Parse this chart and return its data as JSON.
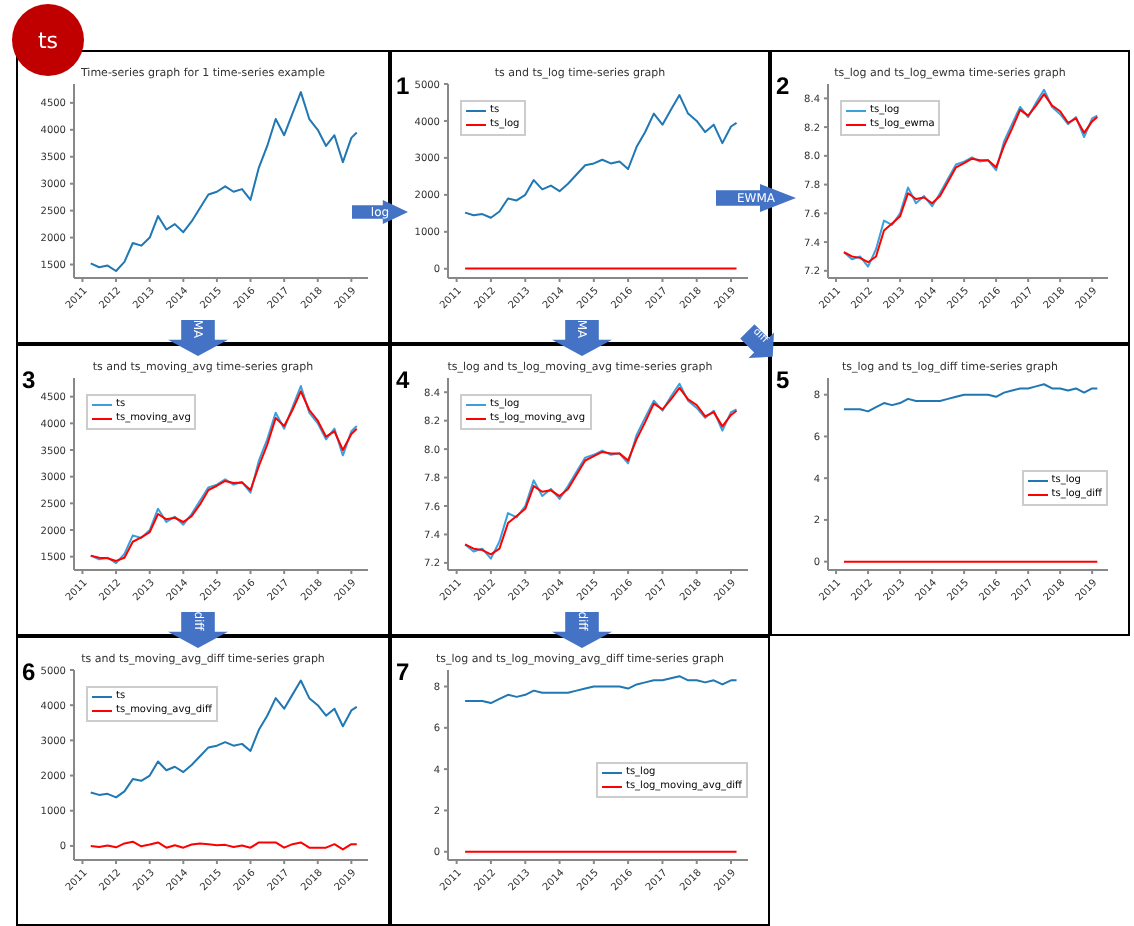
{
  "chart_data": [
    {
      "type": "line",
      "title": "Time-series graph for 1 time-series example",
      "annotations": [
        "ts"
      ],
      "x": [
        "2011-04",
        "2011-07",
        "2011-10",
        "2012-01",
        "2012-04",
        "2012-07",
        "2012-10",
        "2013-01",
        "2013-04",
        "2013-07",
        "2013-10",
        "2014-01",
        "2014-04",
        "2014-07",
        "2014-10",
        "2015-01",
        "2015-04",
        "2015-07",
        "2015-10",
        "2016-01",
        "2016-04",
        "2016-07",
        "2016-10",
        "2017-01",
        "2017-04",
        "2017-07",
        "2017-10",
        "2018-01",
        "2018-04",
        "2018-07",
        "2018-10",
        "2019-01",
        "2019-03"
      ],
      "xlim": [
        "2010-10",
        "2019-07"
      ],
      "xticks": [
        "2011",
        "2012",
        "2013",
        "2014",
        "2015",
        "2016",
        "2017",
        "2018",
        "2019"
      ],
      "ylim": [
        1250,
        4850
      ],
      "yticks": [
        1500,
        2000,
        2500,
        3000,
        3500,
        4000,
        4500
      ],
      "legend": false,
      "marker": "none",
      "series": [
        {
          "color": "#1f77b4",
          "values": [
            1520,
            1450,
            1480,
            1380,
            1550,
            1900,
            1850,
            2000,
            2400,
            2150,
            2250,
            2100,
            2300,
            2550,
            2800,
            2850,
            2950,
            2850,
            2900,
            2700,
            3300,
            3700,
            4200,
            3900,
            4300,
            4700,
            4200,
            4000,
            3700,
            3900,
            3400,
            3850,
            3950
          ]
        }
      ]
    },
    {
      "type": "line",
      "title": "ts and ts_log time-series graph",
      "annotations": [
        "1",
        "log"
      ],
      "x": [
        "2011-04",
        "2011-07",
        "2011-10",
        "2012-01",
        "2012-04",
        "2012-07",
        "2012-10",
        "2013-01",
        "2013-04",
        "2013-07",
        "2013-10",
        "2014-01",
        "2014-04",
        "2014-07",
        "2014-10",
        "2015-01",
        "2015-04",
        "2015-07",
        "2015-10",
        "2016-01",
        "2016-04",
        "2016-07",
        "2016-10",
        "2017-01",
        "2017-04",
        "2017-07",
        "2017-10",
        "2018-01",
        "2018-04",
        "2018-07",
        "2018-10",
        "2019-01",
        "2019-03"
      ],
      "xlim": [
        "2010-10",
        "2019-07"
      ],
      "xticks": [
        "2011",
        "2012",
        "2013",
        "2014",
        "2015",
        "2016",
        "2017",
        "2018",
        "2019"
      ],
      "ylim": [
        -250,
        5000
      ],
      "yticks": [
        0,
        1000,
        2000,
        3000,
        4000,
        5000
      ],
      "legend": "top left",
      "marker": "none",
      "series": [
        {
          "name": "ts",
          "color": "#1f77b4",
          "values": [
            1520,
            1450,
            1480,
            1380,
            1550,
            1900,
            1850,
            2000,
            2400,
            2150,
            2250,
            2100,
            2300,
            2550,
            2800,
            2850,
            2950,
            2850,
            2900,
            2700,
            3300,
            3700,
            4200,
            3900,
            4300,
            4700,
            4200,
            4000,
            3700,
            3900,
            3400,
            3850,
            3950
          ]
        },
        {
          "name": "ts_log",
          "color": "#ff0000",
          "values": [
            8,
            8,
            8,
            8,
            8,
            8,
            8,
            8,
            8,
            8,
            8,
            8,
            8,
            8,
            8,
            8,
            8,
            8,
            8,
            8,
            8,
            8,
            8,
            8,
            8,
            8,
            8,
            8,
            8,
            8,
            8,
            8,
            8
          ]
        }
      ]
    },
    {
      "type": "line",
      "title": "ts_log and ts_log_ewma time-series graph",
      "annotations": [
        "2",
        "EWMA"
      ],
      "x": [
        "2011-04",
        "2011-07",
        "2011-10",
        "2012-01",
        "2012-04",
        "2012-07",
        "2012-10",
        "2013-01",
        "2013-04",
        "2013-07",
        "2013-10",
        "2014-01",
        "2014-04",
        "2014-07",
        "2014-10",
        "2015-01",
        "2015-04",
        "2015-07",
        "2015-10",
        "2016-01",
        "2016-04",
        "2016-07",
        "2016-10",
        "2017-01",
        "2017-04",
        "2017-07",
        "2017-10",
        "2018-01",
        "2018-04",
        "2018-07",
        "2018-10",
        "2019-01",
        "2019-03"
      ],
      "xlim": [
        "2010-10",
        "2019-07"
      ],
      "xticks": [
        "2011",
        "2012",
        "2013",
        "2014",
        "2015",
        "2016",
        "2017",
        "2018",
        "2019"
      ],
      "ylim": [
        7.15,
        8.5
      ],
      "yticks": [
        {
          "value": 7.2,
          "label": "7.2"
        },
        {
          "value": 7.4,
          "label": "7.4"
        },
        {
          "value": 7.6,
          "label": "7.6"
        },
        {
          "value": 7.8,
          "label": "7.8"
        },
        {
          "value": 8,
          "label": "8.0"
        },
        {
          "value": 8.2,
          "label": "8.2"
        },
        {
          "value": 8.4,
          "label": "8.4"
        }
      ],
      "legend": "top left",
      "marker": "none",
      "series": [
        {
          "name": "ts_log",
          "color": "#3aa0dc",
          "values": [
            7.33,
            7.28,
            7.3,
            7.23,
            7.35,
            7.55,
            7.52,
            7.6,
            7.78,
            7.67,
            7.72,
            7.65,
            7.74,
            7.84,
            7.94,
            7.96,
            7.99,
            7.96,
            7.97,
            7.9,
            8.1,
            8.22,
            8.34,
            8.27,
            8.37,
            8.46,
            8.34,
            8.29,
            8.22,
            8.27,
            8.13,
            8.26,
            8.28
          ]
        },
        {
          "name": "ts_log_ewma",
          "color": "#ff0000",
          "values": [
            7.33,
            7.3,
            7.29,
            7.26,
            7.3,
            7.48,
            7.53,
            7.58,
            7.74,
            7.7,
            7.71,
            7.67,
            7.72,
            7.82,
            7.92,
            7.95,
            7.98,
            7.97,
            7.97,
            7.92,
            8.07,
            8.19,
            8.32,
            8.28,
            8.35,
            8.43,
            8.35,
            8.31,
            8.23,
            8.26,
            8.16,
            8.24,
            8.27
          ]
        }
      ]
    },
    {
      "type": "line",
      "title": "ts and ts_moving_avg time-series graph",
      "annotations": [
        "3",
        "MA"
      ],
      "x": [
        "2011-04",
        "2011-07",
        "2011-10",
        "2012-01",
        "2012-04",
        "2012-07",
        "2012-10",
        "2013-01",
        "2013-04",
        "2013-07",
        "2013-10",
        "2014-01",
        "2014-04",
        "2014-07",
        "2014-10",
        "2015-01",
        "2015-04",
        "2015-07",
        "2015-10",
        "2016-01",
        "2016-04",
        "2016-07",
        "2016-10",
        "2017-01",
        "2017-04",
        "2017-07",
        "2017-10",
        "2018-01",
        "2018-04",
        "2018-07",
        "2018-10",
        "2019-01",
        "2019-03"
      ],
      "xlim": [
        "2010-10",
        "2019-07"
      ],
      "xticks": [
        "2011",
        "2012",
        "2013",
        "2014",
        "2015",
        "2016",
        "2017",
        "2018",
        "2019"
      ],
      "ylim": [
        1250,
        4850
      ],
      "yticks": [
        1500,
        2000,
        2500,
        3000,
        3500,
        4000,
        4500
      ],
      "legend": "top left",
      "marker": "none",
      "series": [
        {
          "name": "ts",
          "color": "#3aa0dc",
          "values": [
            1520,
            1450,
            1480,
            1380,
            1550,
            1900,
            1850,
            2000,
            2400,
            2150,
            2250,
            2100,
            2300,
            2550,
            2800,
            2850,
            2950,
            2850,
            2900,
            2700,
            3300,
            3700,
            4200,
            3900,
            4300,
            4700,
            4200,
            4000,
            3700,
            3900,
            3400,
            3850,
            3950
          ]
        },
        {
          "name": "ts_moving_avg",
          "color": "#ff0000",
          "values": [
            1520,
            1480,
            1470,
            1420,
            1480,
            1780,
            1860,
            1960,
            2300,
            2200,
            2230,
            2150,
            2260,
            2480,
            2750,
            2830,
            2920,
            2880,
            2890,
            2750,
            3200,
            3600,
            4100,
            3950,
            4250,
            4600,
            4250,
            4050,
            3750,
            3850,
            3500,
            3800,
            3900
          ]
        }
      ]
    },
    {
      "type": "line",
      "title": "ts_log and ts_log_moving_avg time-series graph",
      "annotations": [
        "4",
        "MA"
      ],
      "x": [
        "2011-04",
        "2011-07",
        "2011-10",
        "2012-01",
        "2012-04",
        "2012-07",
        "2012-10",
        "2013-01",
        "2013-04",
        "2013-07",
        "2013-10",
        "2014-01",
        "2014-04",
        "2014-07",
        "2014-10",
        "2015-01",
        "2015-04",
        "2015-07",
        "2015-10",
        "2016-01",
        "2016-04",
        "2016-07",
        "2016-10",
        "2017-01",
        "2017-04",
        "2017-07",
        "2017-10",
        "2018-01",
        "2018-04",
        "2018-07",
        "2018-10",
        "2019-01",
        "2019-03"
      ],
      "xlim": [
        "2010-10",
        "2019-07"
      ],
      "xticks": [
        "2011",
        "2012",
        "2013",
        "2014",
        "2015",
        "2016",
        "2017",
        "2018",
        "2019"
      ],
      "ylim": [
        7.15,
        8.5
      ],
      "yticks": [
        {
          "value": 7.2,
          "label": "7.2"
        },
        {
          "value": 7.4,
          "label": "7.4"
        },
        {
          "value": 7.6,
          "label": "7.6"
        },
        {
          "value": 7.8,
          "label": "7.8"
        },
        {
          "value": 8,
          "label": "8.0"
        },
        {
          "value": 8.2,
          "label": "8.2"
        },
        {
          "value": 8.4,
          "label": "8.4"
        }
      ],
      "legend": "top left",
      "marker": "none",
      "series": [
        {
          "name": "ts_log",
          "color": "#3aa0dc",
          "values": [
            7.33,
            7.28,
            7.3,
            7.23,
            7.35,
            7.55,
            7.52,
            7.6,
            7.78,
            7.67,
            7.72,
            7.65,
            7.74,
            7.84,
            7.94,
            7.96,
            7.99,
            7.96,
            7.97,
            7.9,
            8.1,
            8.22,
            8.34,
            8.27,
            8.37,
            8.46,
            8.34,
            8.29,
            8.22,
            8.27,
            8.13,
            8.26,
            8.28
          ]
        },
        {
          "name": "ts_log_moving_avg",
          "color": "#ff0000",
          "values": [
            7.33,
            7.3,
            7.29,
            7.26,
            7.3,
            7.48,
            7.53,
            7.58,
            7.74,
            7.7,
            7.71,
            7.67,
            7.72,
            7.82,
            7.92,
            7.95,
            7.98,
            7.97,
            7.97,
            7.92,
            8.07,
            8.19,
            8.32,
            8.28,
            8.35,
            8.43,
            8.35,
            8.31,
            8.23,
            8.26,
            8.16,
            8.24,
            8.27
          ]
        }
      ]
    },
    {
      "type": "line",
      "title": "ts_log and ts_log_diff time-series graph",
      "annotations": [
        "5",
        "diff"
      ],
      "x": [
        "2011-04",
        "2011-07",
        "2011-10",
        "2012-01",
        "2012-04",
        "2012-07",
        "2012-10",
        "2013-01",
        "2013-04",
        "2013-07",
        "2013-10",
        "2014-01",
        "2014-04",
        "2014-07",
        "2014-10",
        "2015-01",
        "2015-04",
        "2015-07",
        "2015-10",
        "2016-01",
        "2016-04",
        "2016-07",
        "2016-10",
        "2017-01",
        "2017-04",
        "2017-07",
        "2017-10",
        "2018-01",
        "2018-04",
        "2018-07",
        "2018-10",
        "2019-01",
        "2019-03"
      ],
      "xlim": [
        "2010-10",
        "2019-07"
      ],
      "xticks": [
        "2011",
        "2012",
        "2013",
        "2014",
        "2015",
        "2016",
        "2017",
        "2018",
        "2019"
      ],
      "ylim": [
        -0.4,
        8.8
      ],
      "yticks": [
        0,
        2,
        4,
        6,
        8
      ],
      "legend": "right",
      "marker": "none",
      "series": [
        {
          "name": "ts_log",
          "color": "#1f77b4",
          "values": [
            7.3,
            7.3,
            7.3,
            7.2,
            7.4,
            7.6,
            7.5,
            7.6,
            7.8,
            7.7,
            7.7,
            7.7,
            7.7,
            7.8,
            7.9,
            8.0,
            8.0,
            8.0,
            8.0,
            7.9,
            8.1,
            8.2,
            8.3,
            8.3,
            8.4,
            8.5,
            8.3,
            8.3,
            8.2,
            8.3,
            8.1,
            8.3,
            8.3
          ]
        },
        {
          "name": "ts_log_diff",
          "color": "#ff0000",
          "values": [
            0,
            0,
            0,
            0,
            0,
            0,
            0,
            0,
            0,
            0,
            0,
            0,
            0,
            0,
            0,
            0,
            0,
            0,
            0,
            0,
            0,
            0,
            0,
            0,
            0,
            0,
            0,
            0,
            0,
            0,
            0,
            0,
            0
          ]
        }
      ]
    },
    {
      "type": "line",
      "title": "ts and ts_moving_avg_diff time-series graph",
      "annotations": [
        "6",
        "diff"
      ],
      "x": [
        "2011-04",
        "2011-07",
        "2011-10",
        "2012-01",
        "2012-04",
        "2012-07",
        "2012-10",
        "2013-01",
        "2013-04",
        "2013-07",
        "2013-10",
        "2014-01",
        "2014-04",
        "2014-07",
        "2014-10",
        "2015-01",
        "2015-04",
        "2015-07",
        "2015-10",
        "2016-01",
        "2016-04",
        "2016-07",
        "2016-10",
        "2017-01",
        "2017-04",
        "2017-07",
        "2017-10",
        "2018-01",
        "2018-04",
        "2018-07",
        "2018-10",
        "2019-01",
        "2019-03"
      ],
      "xlim": [
        "2010-10",
        "2019-07"
      ],
      "xticks": [
        "2011",
        "2012",
        "2013",
        "2014",
        "2015",
        "2016",
        "2017",
        "2018",
        "2019"
      ],
      "ylim": [
        -400,
        5000
      ],
      "yticks": [
        0,
        1000,
        2000,
        3000,
        4000,
        5000
      ],
      "legend": "top left",
      "marker": "none",
      "series": [
        {
          "name": "ts",
          "color": "#1f77b4",
          "values": [
            1520,
            1450,
            1480,
            1380,
            1550,
            1900,
            1850,
            2000,
            2400,
            2150,
            2250,
            2100,
            2300,
            2550,
            2800,
            2850,
            2950,
            2850,
            2900,
            2700,
            3300,
            3700,
            4200,
            3900,
            4300,
            4700,
            4200,
            4000,
            3700,
            3900,
            3400,
            3850,
            3950
          ]
        },
        {
          "name": "ts_moving_avg_diff",
          "color": "#ff0000",
          "values": [
            0,
            -30,
            10,
            -40,
            70,
            120,
            -10,
            40,
            100,
            -50,
            20,
            -50,
            40,
            70,
            50,
            20,
            30,
            -30,
            10,
            -50,
            100,
            100,
            100,
            -50,
            50,
            100,
            -50,
            -50,
            -50,
            50,
            -100,
            50,
            50
          ]
        }
      ]
    },
    {
      "type": "line",
      "title": "ts_log and ts_log_moving_avg_diff time-series graph",
      "annotations": [
        "7",
        "diff"
      ],
      "x": [
        "2011-04",
        "2011-07",
        "2011-10",
        "2012-01",
        "2012-04",
        "2012-07",
        "2012-10",
        "2013-01",
        "2013-04",
        "2013-07",
        "2013-10",
        "2014-01",
        "2014-04",
        "2014-07",
        "2014-10",
        "2015-01",
        "2015-04",
        "2015-07",
        "2015-10",
        "2016-01",
        "2016-04",
        "2016-07",
        "2016-10",
        "2017-01",
        "2017-04",
        "2017-07",
        "2017-10",
        "2018-01",
        "2018-04",
        "2018-07",
        "2018-10",
        "2019-01",
        "2019-03"
      ],
      "xlim": [
        "2010-10",
        "2019-07"
      ],
      "xticks": [
        "2011",
        "2012",
        "2013",
        "2014",
        "2015",
        "2016",
        "2017",
        "2018",
        "2019"
      ],
      "ylim": [
        -0.4,
        8.8
      ],
      "yticks": [
        0,
        2,
        4,
        6,
        8
      ],
      "legend": "right",
      "marker": "none",
      "series": [
        {
          "name": "ts_log",
          "color": "#1f77b4",
          "values": [
            7.3,
            7.3,
            7.3,
            7.2,
            7.4,
            7.6,
            7.5,
            7.6,
            7.8,
            7.7,
            7.7,
            7.7,
            7.7,
            7.8,
            7.9,
            8.0,
            8.0,
            8.0,
            8.0,
            7.9,
            8.1,
            8.2,
            8.3,
            8.3,
            8.4,
            8.5,
            8.3,
            8.3,
            8.2,
            8.3,
            8.1,
            8.3,
            8.3
          ]
        },
        {
          "name": "ts_log_moving_avg_diff",
          "color": "#ff0000",
          "values": [
            0,
            0,
            0,
            0,
            0,
            0,
            0,
            0,
            0,
            0,
            0,
            0,
            0,
            0,
            0,
            0,
            0,
            0,
            0,
            0,
            0,
            0,
            0,
            0,
            0,
            0,
            0,
            0,
            0,
            0,
            0,
            0,
            0
          ]
        }
      ]
    }
  ]
}
